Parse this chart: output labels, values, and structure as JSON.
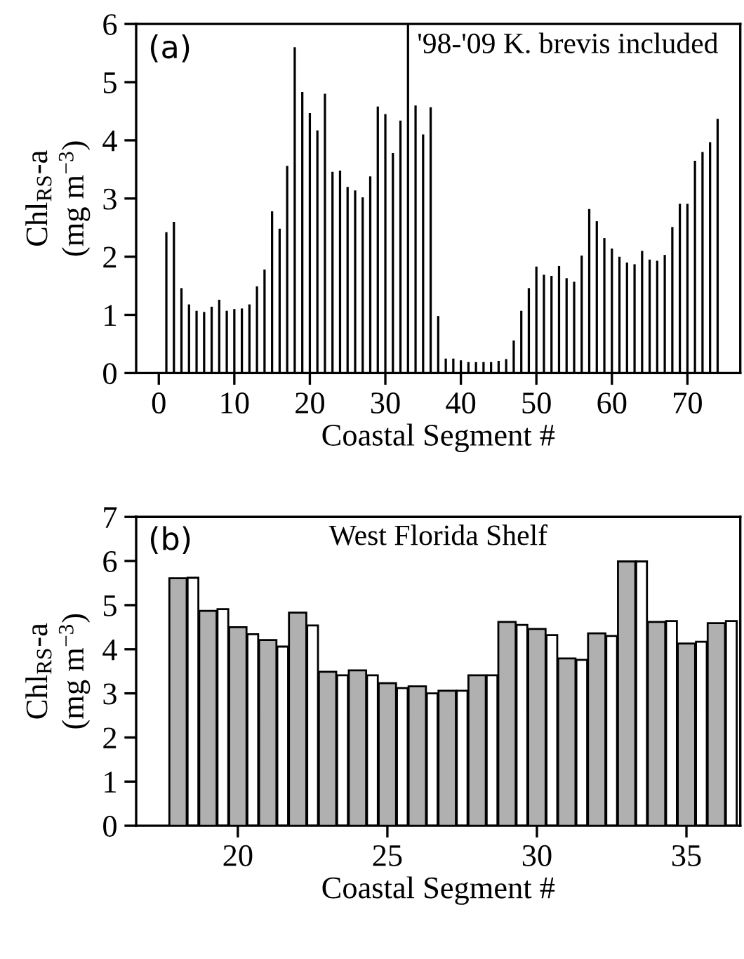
{
  "chart_data": [
    {
      "type": "bar",
      "xlabel": "Coastal Segment #",
      "ylabel": "Chl$_{RS}$-a\n(mg m$^{−3}$)",
      "annotations": [
        "(a)",
        "'98-'09 K. brevis included"
      ],
      "x": [
        1,
        2,
        3,
        4,
        5,
        6,
        7,
        8,
        9,
        10,
        11,
        12,
        13,
        14,
        15,
        16,
        17,
        18,
        19,
        20,
        21,
        22,
        23,
        24,
        25,
        26,
        27,
        28,
        29,
        30,
        31,
        32,
        33,
        34,
        35,
        36,
        37,
        38,
        39,
        40,
        41,
        42,
        43,
        44,
        45,
        46,
        47,
        48,
        49,
        50,
        51,
        52,
        53,
        54,
        55,
        56,
        57,
        58,
        59,
        60,
        61,
        62,
        63,
        64,
        65,
        66,
        67,
        68,
        69,
        70,
        71,
        72,
        73,
        74
      ],
      "series": [
        {
          "color": "#000000",
          "values": [
            2.42,
            2.6,
            1.46,
            1.18,
            1.07,
            1.05,
            1.14,
            1.26,
            1.07,
            1.1,
            1.11,
            1.18,
            1.49,
            1.78,
            2.78,
            2.48,
            3.56,
            5.6,
            4.83,
            4.47,
            4.17,
            4.8,
            3.46,
            3.48,
            3.2,
            3.14,
            3.02,
            3.38,
            4.58,
            4.45,
            3.78,
            4.34,
            6.0,
            4.6,
            4.1,
            4.57,
            0.98,
            0.25,
            0.25,
            0.22,
            0.19,
            0.19,
            0.19,
            0.19,
            0.21,
            0.24,
            0.56,
            1.07,
            1.46,
            1.83,
            1.69,
            1.67,
            1.84,
            1.63,
            1.57,
            2.02,
            2.82,
            2.61,
            2.32,
            2.14,
            2.0,
            1.9,
            1.87,
            2.1,
            1.95,
            1.93,
            2.03,
            2.51,
            2.91,
            2.91,
            3.65,
            3.8,
            3.97,
            4.37
          ]
        }
      ],
      "xlim": [
        -3,
        77
      ],
      "xticks": [
        0,
        10,
        20,
        30,
        40,
        50,
        60,
        70
      ],
      "ylim": [
        0,
        6
      ],
      "yticks": [
        0,
        1,
        2,
        3,
        4,
        5,
        6
      ],
      "grid": false,
      "legend": false
    },
    {
      "type": "bar",
      "xlabel": "Coastal Segment #",
      "ylabel": "Chl$_{RS}$-a\n(mg m$^{−3}$)",
      "annotations": [
        "(b)",
        "West Florida Shelf"
      ],
      "x": [
        18,
        19,
        20,
        21,
        22,
        23,
        24,
        25,
        26,
        27,
        28,
        29,
        30,
        31,
        32,
        33,
        34,
        35,
        36
      ],
      "series": [
        {
          "color": "#b0b0b0",
          "values": [
            5.61,
            4.87,
            4.5,
            4.21,
            4.83,
            3.49,
            3.52,
            3.23,
            3.16,
            3.06,
            3.41,
            4.62,
            4.46,
            3.79,
            4.36,
            5.99,
            4.62,
            4.13,
            4.59
          ]
        },
        {
          "color": "#ffffff",
          "values": [
            5.62,
            4.91,
            4.34,
            4.06,
            4.54,
            3.41,
            3.41,
            3.12,
            3.0,
            3.06,
            3.41,
            4.55,
            4.32,
            3.76,
            4.3,
            5.99,
            4.64,
            4.17,
            4.64
          ]
        }
      ],
      "xlim": [
        16.6,
        36.8
      ],
      "xticks": [
        20,
        25,
        30,
        35
      ],
      "ylim": [
        0,
        7
      ],
      "yticks": [
        0,
        1,
        2,
        3,
        4,
        5,
        6,
        7
      ],
      "grid": false,
      "legend": false
    }
  ]
}
